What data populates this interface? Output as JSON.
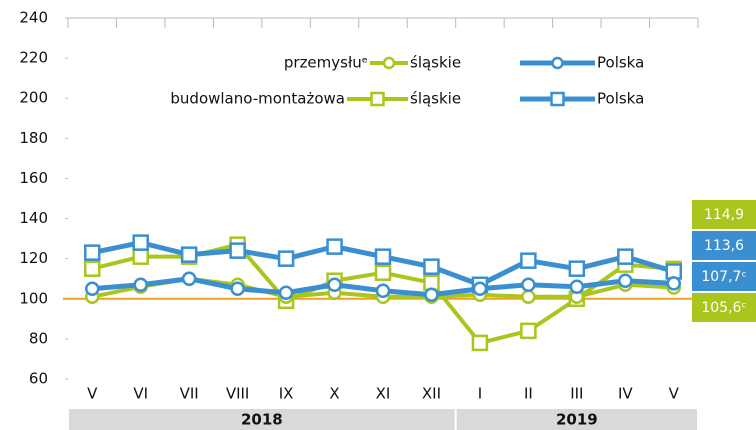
{
  "chart_data": {
    "type": "line",
    "categories": [
      "V",
      "VI",
      "VII",
      "VIII",
      "IX",
      "X",
      "XI",
      "XII",
      "I",
      "II",
      "III",
      "IV",
      "V"
    ],
    "groups": [
      {
        "label": "2018",
        "span": 8
      },
      {
        "label": "2019",
        "span": 5
      }
    ],
    "series": [
      {
        "group": "przemysłuᵉ",
        "name": "śląskie",
        "color": "#a9c61e",
        "marker": "circle",
        "values": [
          101,
          106,
          110,
          107,
          101,
          103,
          101,
          101,
          102,
          101,
          101,
          107,
          105.6
        ],
        "value_labels": [
          null,
          null,
          null,
          null,
          null,
          null,
          null,
          null,
          null,
          null,
          null,
          null,
          "105,6ᶜ"
        ]
      },
      {
        "group": "budowlano-montażowa",
        "name": "śląskie",
        "color": "#a9c61e",
        "marker": "square",
        "values": [
          115,
          121,
          121,
          127,
          99,
          109,
          113,
          108,
          78,
          84,
          100,
          117,
          114.9
        ],
        "value_labels": [
          null,
          null,
          null,
          null,
          null,
          null,
          null,
          null,
          null,
          null,
          null,
          null,
          "114,9"
        ]
      },
      {
        "group": "przemysłuᵉ",
        "name": "Polska",
        "color": "#3a8fd0",
        "marker": "circle",
        "values": [
          105,
          107,
          110,
          105,
          103,
          107,
          104,
          102,
          105,
          107,
          106,
          109,
          107.7
        ],
        "value_labels": [
          null,
          null,
          null,
          null,
          null,
          null,
          null,
          null,
          null,
          null,
          null,
          null,
          "107,7ᶜ"
        ]
      },
      {
        "group": "budowlano-montażowa",
        "name": "Polska",
        "color": "#3a8fd0",
        "marker": "square",
        "values": [
          123,
          128,
          122,
          124,
          120,
          126,
          121,
          116,
          107,
          119,
          115,
          121,
          113.6
        ],
        "value_labels": [
          null,
          null,
          null,
          null,
          null,
          null,
          null,
          null,
          null,
          null,
          null,
          null,
          "113,6"
        ]
      }
    ],
    "reference": 100,
    "reference_color": "#f0a020",
    "ylim": [
      60,
      240
    ],
    "yticks": [
      60,
      80,
      100,
      120,
      140,
      160,
      180,
      200,
      220,
      240
    ],
    "grid": false
  }
}
